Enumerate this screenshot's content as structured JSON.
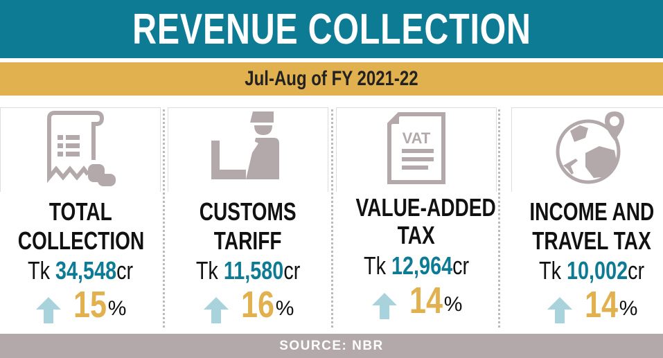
{
  "title": "REVENUE COLLECTION",
  "subtitle": "Jul-Aug of FY 2021-22",
  "items": [
    {
      "line1": "TOTAL",
      "line2": "COLLECTION",
      "prefix": "Tk ",
      "amount": "34,548",
      "unit": "cr",
      "change": "15",
      "pct": "%",
      "icon": "receipt-coins-icon"
    },
    {
      "line1": "CUSTOMS",
      "line2": "TARIFF",
      "prefix": "Tk ",
      "amount": "11,580",
      "unit": "cr",
      "change": "16",
      "pct": "%",
      "icon": "customs-officer-icon"
    },
    {
      "line1": "VALUE-ADDED",
      "line2": "TAX",
      "prefix": "Tk ",
      "amount": "12,964",
      "unit": "cr",
      "change": "14",
      "pct": "%",
      "icon": "vat-document-icon"
    },
    {
      "line1": "INCOME AND",
      "line2": "TRAVEL TAX",
      "prefix": "Tk ",
      "amount": "10,002",
      "unit": "cr",
      "change": "14",
      "pct": "%",
      "icon": "globe-travel-icon"
    }
  ],
  "source": "SOURCE: NBR",
  "colors": {
    "teal": "#0e7b94",
    "gold": "#e1b04f",
    "icon": "#b3a9ab",
    "arrow": "#a9d3dc"
  }
}
